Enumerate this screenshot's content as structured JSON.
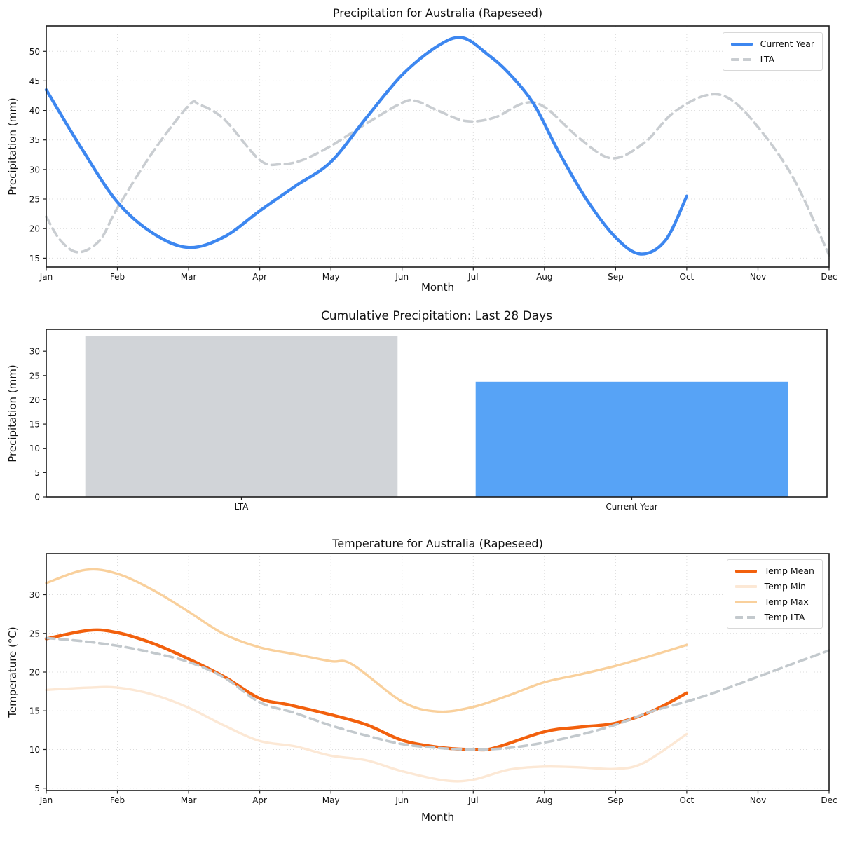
{
  "chart_data": [
    {
      "type": "line",
      "title": "Precipitation for Australia (Rapeseed)",
      "xlabel": "Month",
      "ylabel": "Precipitation (mm)",
      "x_ticks": [
        "Jan",
        "Feb",
        "Mar",
        "Apr",
        "May",
        "Jun",
        "Jul",
        "Aug",
        "Sep",
        "Oct",
        "Nov",
        "Dec"
      ],
      "xlim": [
        0,
        11
      ],
      "y_ticks": [
        15,
        20,
        25,
        30,
        35,
        40,
        45,
        50
      ],
      "ylim": [
        13.5,
        54.3
      ],
      "grid": true,
      "legend_position": "upper right",
      "legend": [
        {
          "label": "Current Year",
          "color": "#3D87F0",
          "dashed": false
        },
        {
          "label": "LTA",
          "color": "#C9CDD1",
          "dashed": true
        }
      ],
      "series": [
        {
          "name": "LTA",
          "color": "#C9CDD1",
          "dashed": true,
          "width": 3.6,
          "points": [
            [
              0,
              22.0
            ],
            [
              0.2,
              18.0
            ],
            [
              0.45,
              16.0
            ],
            [
              0.75,
              18.0
            ],
            [
              1,
              23.5
            ],
            [
              1.5,
              33.0
            ],
            [
              2,
              40.8
            ],
            [
              2.15,
              41.0
            ],
            [
              2.5,
              38.5
            ],
            [
              3,
              31.6
            ],
            [
              3.3,
              30.9
            ],
            [
              3.6,
              31.6
            ],
            [
              4,
              34.0
            ],
            [
              4.5,
              37.8
            ],
            [
              5,
              41.3
            ],
            [
              5.2,
              41.6
            ],
            [
              5.5,
              40.0
            ],
            [
              5.9,
              38.2
            ],
            [
              6.3,
              38.8
            ],
            [
              6.7,
              41.2
            ],
            [
              7,
              40.6
            ],
            [
              7.5,
              35.2
            ],
            [
              7.95,
              31.9
            ],
            [
              8.4,
              34.5
            ],
            [
              8.8,
              39.5
            ],
            [
              9.25,
              42.5
            ],
            [
              9.6,
              42.0
            ],
            [
              10,
              37.2
            ],
            [
              10.5,
              28.5
            ],
            [
              11,
              15.5
            ]
          ]
        },
        {
          "name": "Current Year",
          "color": "#3D87F0",
          "dashed": false,
          "width": 4.4,
          "points": [
            [
              0,
              43.5
            ],
            [
              0.5,
              33.5
            ],
            [
              1,
              24.5
            ],
            [
              1.5,
              19.2
            ],
            [
              2,
              16.8
            ],
            [
              2.5,
              18.6
            ],
            [
              3,
              23.0
            ],
            [
              3.5,
              27.2
            ],
            [
              4,
              31.3
            ],
            [
              4.5,
              38.8
            ],
            [
              5,
              46.0
            ],
            [
              5.5,
              50.9
            ],
            [
              5.85,
              52.3
            ],
            [
              6.2,
              49.5
            ],
            [
              6.5,
              46.3
            ],
            [
              6.85,
              41.1
            ],
            [
              7.2,
              33.0
            ],
            [
              7.6,
              24.8
            ],
            [
              8,
              18.5
            ],
            [
              8.35,
              15.7
            ],
            [
              8.7,
              18.0
            ],
            [
              9,
              25.5
            ]
          ]
        }
      ]
    },
    {
      "type": "bar",
      "title": "Cumulative Precipitation: Last 28 Days",
      "ylabel": "Precipitation (mm)",
      "categories": [
        "LTA",
        "Current Year"
      ],
      "values": [
        33.2,
        23.7
      ],
      "colors": [
        "#D1D4D8",
        "#57A3F6"
      ],
      "y_ticks": [
        0,
        5,
        10,
        15,
        20,
        25,
        30
      ],
      "ylim": [
        0,
        34.5
      ],
      "grid": false
    },
    {
      "type": "line",
      "title": "Temperature for Australia (Rapeseed)",
      "xlabel": "Month",
      "ylabel": "Temperature (°C)",
      "x_ticks": [
        "Jan",
        "Feb",
        "Mar",
        "Apr",
        "May",
        "Jun",
        "Jul",
        "Aug",
        "Sep",
        "Oct",
        "Nov",
        "Dec"
      ],
      "xlim": [
        0,
        11
      ],
      "y_ticks": [
        5,
        10,
        15,
        20,
        25,
        30
      ],
      "ylim": [
        4.7,
        35.3
      ],
      "grid": true,
      "legend_position": "upper right",
      "legend": [
        {
          "label": "Temp Mean",
          "color": "#F2600D",
          "dashed": false
        },
        {
          "label": "Temp Min",
          "color": "#FCE8D5",
          "dashed": false
        },
        {
          "label": "Temp Max",
          "color": "#F9D09C",
          "dashed": false
        },
        {
          "label": "Temp LTA",
          "color": "#C3C9CD",
          "dashed": true
        }
      ],
      "series": [
        {
          "name": "Temp Mean",
          "color": "#F2600D",
          "dashed": false,
          "width": 4.4,
          "points": [
            [
              0,
              24.3
            ],
            [
              0.6,
              25.4
            ],
            [
              1,
              25.1
            ],
            [
              1.5,
              23.7
            ],
            [
              2,
              21.7
            ],
            [
              2.5,
              19.4
            ],
            [
              3,
              16.6
            ],
            [
              3.4,
              15.8
            ],
            [
              4,
              14.5
            ],
            [
              4.5,
              13.2
            ],
            [
              5,
              11.2
            ],
            [
              5.5,
              10.3
            ],
            [
              6,
              10.0
            ],
            [
              6.3,
              10.2
            ],
            [
              7,
              12.3
            ],
            [
              7.5,
              12.9
            ],
            [
              8,
              13.4
            ],
            [
              8.5,
              14.9
            ],
            [
              9,
              17.3
            ]
          ]
        },
        {
          "name": "Temp Min",
          "color": "#FCE8D5",
          "dashed": false,
          "width": 3.4,
          "points": [
            [
              0,
              17.7
            ],
            [
              0.6,
              18.0
            ],
            [
              1,
              18.0
            ],
            [
              1.5,
              17.1
            ],
            [
              2,
              15.4
            ],
            [
              2.5,
              13.1
            ],
            [
              3,
              11.1
            ],
            [
              3.5,
              10.4
            ],
            [
              4,
              9.2
            ],
            [
              4.5,
              8.6
            ],
            [
              5,
              7.2
            ],
            [
              5.6,
              6.0
            ],
            [
              6,
              6.1
            ],
            [
              6.5,
              7.4
            ],
            [
              7,
              7.8
            ],
            [
              7.5,
              7.7
            ],
            [
              8,
              7.5
            ],
            [
              8.4,
              8.3
            ],
            [
              9,
              12.0
            ]
          ]
        },
        {
          "name": "Temp Max",
          "color": "#F9D09C",
          "dashed": false,
          "width": 3.4,
          "points": [
            [
              0,
              31.5
            ],
            [
              0.55,
              33.2
            ],
            [
              1,
              32.7
            ],
            [
              1.5,
              30.6
            ],
            [
              2,
              27.8
            ],
            [
              2.5,
              24.9
            ],
            [
              3,
              23.2
            ],
            [
              3.5,
              22.3
            ],
            [
              4,
              21.4
            ],
            [
              4.3,
              21.0
            ],
            [
              5,
              16.2
            ],
            [
              5.5,
              14.9
            ],
            [
              6,
              15.5
            ],
            [
              6.5,
              17.0
            ],
            [
              7,
              18.7
            ],
            [
              7.5,
              19.7
            ],
            [
              8,
              20.8
            ],
            [
              8.5,
              22.1
            ],
            [
              9,
              23.5
            ]
          ]
        },
        {
          "name": "Temp LTA",
          "color": "#C3C9CD",
          "dashed": true,
          "width": 3.6,
          "points": [
            [
              0,
              24.4
            ],
            [
              0.5,
              24.0
            ],
            [
              1,
              23.4
            ],
            [
              1.5,
              22.5
            ],
            [
              2,
              21.3
            ],
            [
              2.5,
              19.3
            ],
            [
              3,
              16.1
            ],
            [
              3.5,
              14.7
            ],
            [
              4,
              13.1
            ],
            [
              4.5,
              11.8
            ],
            [
              5,
              10.7
            ],
            [
              5.5,
              10.2
            ],
            [
              6,
              10.0
            ],
            [
              6.5,
              10.2
            ],
            [
              7,
              10.9
            ],
            [
              7.5,
              11.9
            ],
            [
              8,
              13.2
            ],
            [
              8.5,
              14.9
            ],
            [
              9,
              16.2
            ],
            [
              9.5,
              17.7
            ],
            [
              10,
              19.4
            ],
            [
              10.5,
              21.1
            ],
            [
              11,
              22.8
            ]
          ]
        }
      ]
    }
  ]
}
